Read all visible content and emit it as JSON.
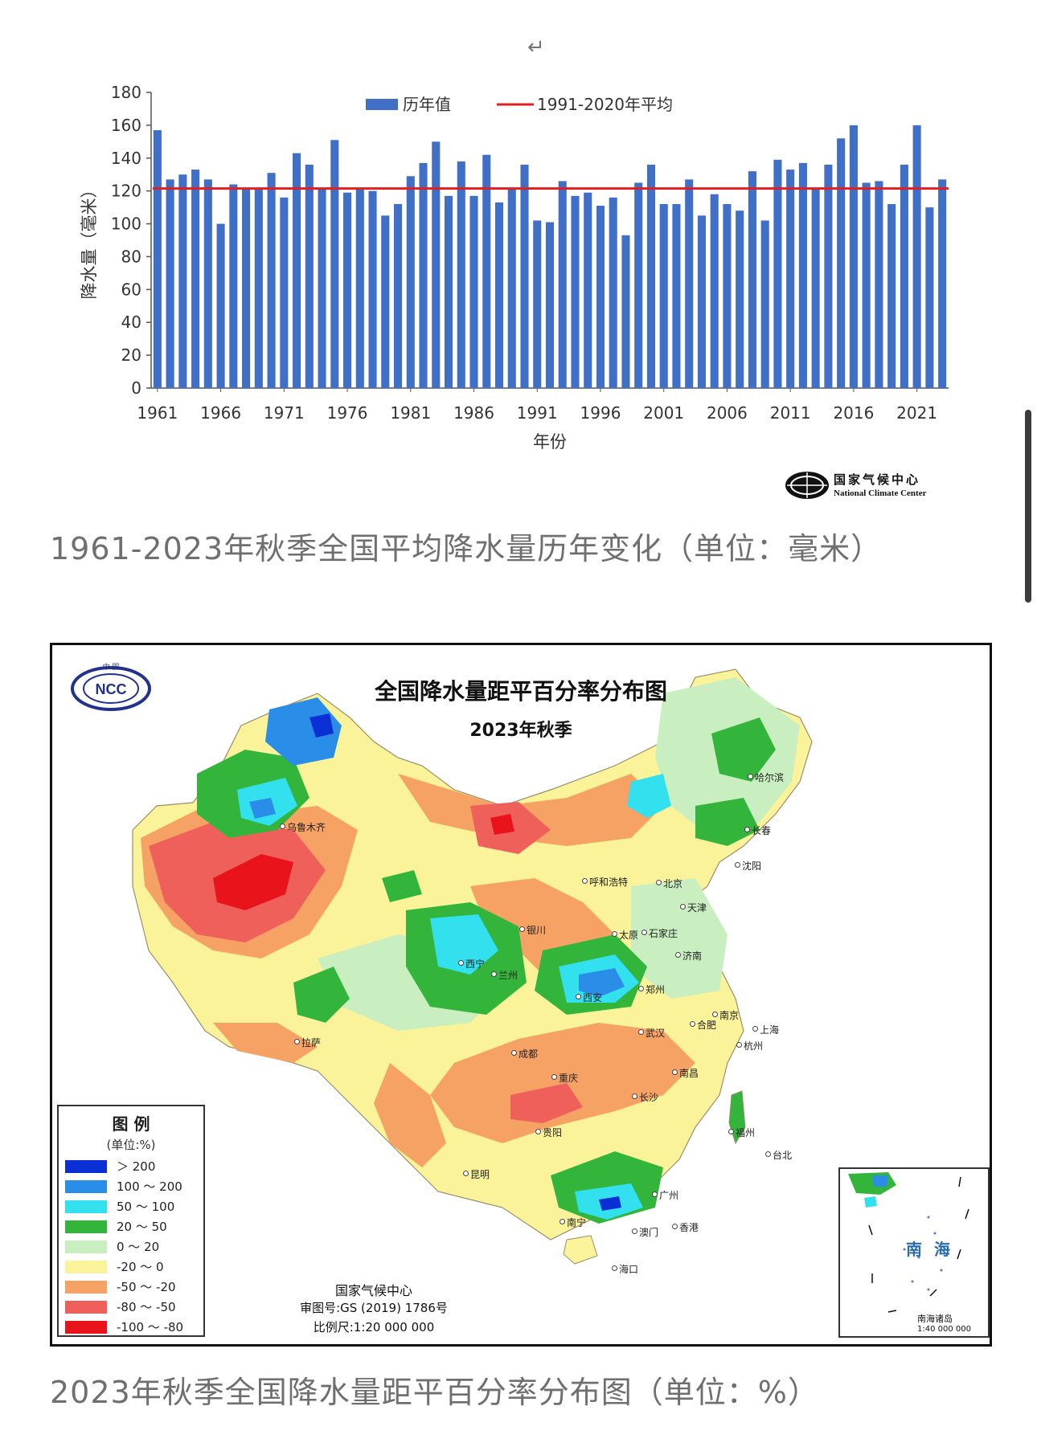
{
  "page": {
    "return_mark": "↵",
    "caption_chart": "1961-2023年秋季全国平均降水量历年变化（单位：毫米）",
    "caption_map": "2023年秋季全国降水量距平百分率分布图（单位：%）"
  },
  "chart_data": [
    {
      "type": "bar",
      "ylabel": "降水量（毫米）",
      "xlabel": "年份",
      "ylim": [
        0,
        180
      ],
      "yticks": [
        "0",
        "20",
        "40",
        "60",
        "80",
        "100",
        "120",
        "140",
        "160",
        "180"
      ],
      "xticks": [
        "1961",
        "1966",
        "1971",
        "1976",
        "1981",
        "1986",
        "1991",
        "1996",
        "2001",
        "2006",
        "2011",
        "2016",
        "2021"
      ],
      "series": [
        {
          "name": "历年值",
          "color": "#3f6fc6",
          "x": [
            1961,
            1962,
            1963,
            1964,
            1965,
            1966,
            1967,
            1968,
            1969,
            1970,
            1971,
            1972,
            1973,
            1974,
            1975,
            1976,
            1977,
            1978,
            1979,
            1980,
            1981,
            1982,
            1983,
            1984,
            1985,
            1986,
            1987,
            1988,
            1989,
            1990,
            1991,
            1992,
            1993,
            1994,
            1995,
            1996,
            1997,
            1998,
            1999,
            2000,
            2001,
            2002,
            2003,
            2004,
            2005,
            2006,
            2007,
            2008,
            2009,
            2010,
            2011,
            2012,
            2013,
            2014,
            2015,
            2016,
            2017,
            2018,
            2019,
            2020,
            2021,
            2022,
            2023
          ],
          "values": [
            157,
            127,
            130,
            133,
            127,
            100,
            124,
            121,
            121,
            131,
            116,
            143,
            136,
            121,
            151,
            119,
            121,
            120,
            105,
            112,
            129,
            137,
            150,
            117,
            138,
            117,
            142,
            113,
            122,
            136,
            102,
            101,
            126,
            117,
            119,
            111,
            116,
            93,
            125,
            136,
            112,
            112,
            127,
            105,
            118,
            112,
            108,
            132,
            102,
            139,
            133,
            137,
            121,
            136,
            152,
            160,
            125,
            126,
            112,
            136,
            160,
            110,
            127
          ]
        },
        {
          "name": "1991-2020年平均",
          "color": "#e02020",
          "type": "line",
          "value": 121.5
        }
      ],
      "legend_position": "top-center",
      "grid": false,
      "logo": {
        "cn": "国家气候中心",
        "en": "National Climate Center"
      }
    }
  ],
  "map": {
    "title": "全国降水量距平百分率分布图",
    "subtitle": "2023年秋季",
    "legend_title": "图 例",
    "legend_unit": "(单位:%)",
    "legend": [
      {
        "label": "＞ 200",
        "color": "#0a2fd4"
      },
      {
        "label": "100 ～ 200",
        "color": "#2a8de8"
      },
      {
        "label": "50 ～ 100",
        "color": "#33e0ee"
      },
      {
        "label": "20 ～ 50",
        "color": "#33b53c"
      },
      {
        "label": "0 ～ 20",
        "color": "#c9efc0"
      },
      {
        "label": "-20 ～ 0",
        "color": "#fbf39a"
      },
      {
        "label": "-50 ～ -20",
        "color": "#f6a265"
      },
      {
        "label": "-80 ～ -50",
        "color": "#f0605a"
      },
      {
        "label": "-100 ～ -80",
        "color": "#e8131b"
      }
    ],
    "credit": "国家气候中心",
    "approval": "审图号:GS (2019) 1786号",
    "scale": "比例尺:1:20 000 000",
    "inset_label": "南 海",
    "inset_islands": "南海诸岛",
    "inset_scale": "1:40 000 000",
    "ncc_logo_text": "NCC",
    "ncc_logo_top": "中 国",
    "cities": [
      "乌鲁木齐",
      "呼和浩特",
      "北京",
      "天津",
      "银川",
      "太原",
      "石家庄",
      "济南",
      "西宁",
      "兰州",
      "郑州",
      "西安",
      "拉萨",
      "成都",
      "武汉",
      "合肥",
      "南京",
      "上海",
      "杭州",
      "重庆",
      "长沙",
      "南昌",
      "贵阳",
      "福州",
      "台北",
      "昆明",
      "南宁",
      "广州",
      "香港",
      "澳门",
      "海口",
      "哈尔滨",
      "长春",
      "沈阳"
    ]
  }
}
